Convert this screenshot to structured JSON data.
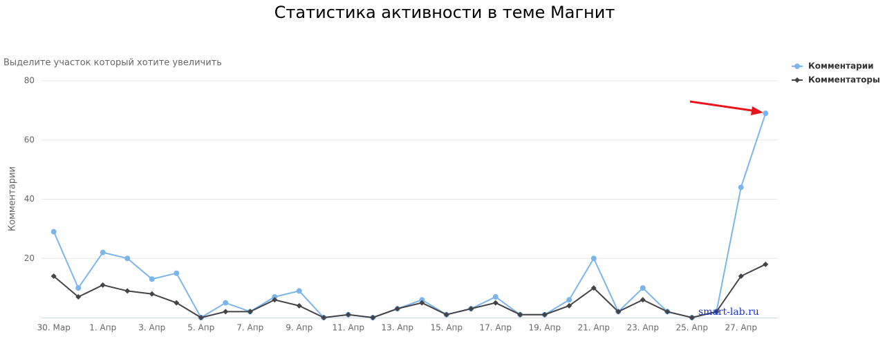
{
  "chart_data": {
    "type": "line",
    "title": "Статистика активности в теме Магнит",
    "subtitle": "Выделите участок который хотите увеличить",
    "y_label": "Комментарии",
    "watermark": "smart-lab.ru",
    "categories": [
      "30. Мар",
      null,
      "1. Апр",
      null,
      "3. Апр",
      null,
      "5. Апр",
      null,
      "7. Апр",
      null,
      "9. Апр",
      null,
      "11. Апр",
      null,
      "13. Апр",
      null,
      "15. Апр",
      null,
      "17. Апр",
      null,
      "19. Апр",
      null,
      "21. Апр",
      null,
      "23. Апр",
      null,
      "25. Апр",
      null,
      "27. Апр",
      null
    ],
    "series": [
      {
        "name": "Комментарии",
        "color": "#7cb5ec",
        "marker": "circle",
        "values": [
          29,
          10,
          22,
          20,
          13,
          15,
          0,
          5,
          2,
          7,
          9,
          0,
          1,
          0,
          3,
          6,
          1,
          3,
          7,
          1,
          1,
          6,
          20,
          2,
          10,
          2,
          0,
          2,
          44,
          69
        ]
      },
      {
        "name": "Комментаторы",
        "color": "#434348",
        "marker": "diamond",
        "values": [
          14,
          7,
          11,
          9,
          8,
          5,
          0,
          2,
          2,
          6,
          4,
          0,
          1,
          0,
          3,
          5,
          1,
          3,
          5,
          1,
          1,
          4,
          10,
          2,
          6,
          2,
          0,
          2,
          14,
          18
        ]
      }
    ],
    "ylim": [
      0,
      80
    ],
    "yticks": [
      20,
      40,
      60,
      80
    ],
    "grid": true,
    "legend": "top-right"
  }
}
